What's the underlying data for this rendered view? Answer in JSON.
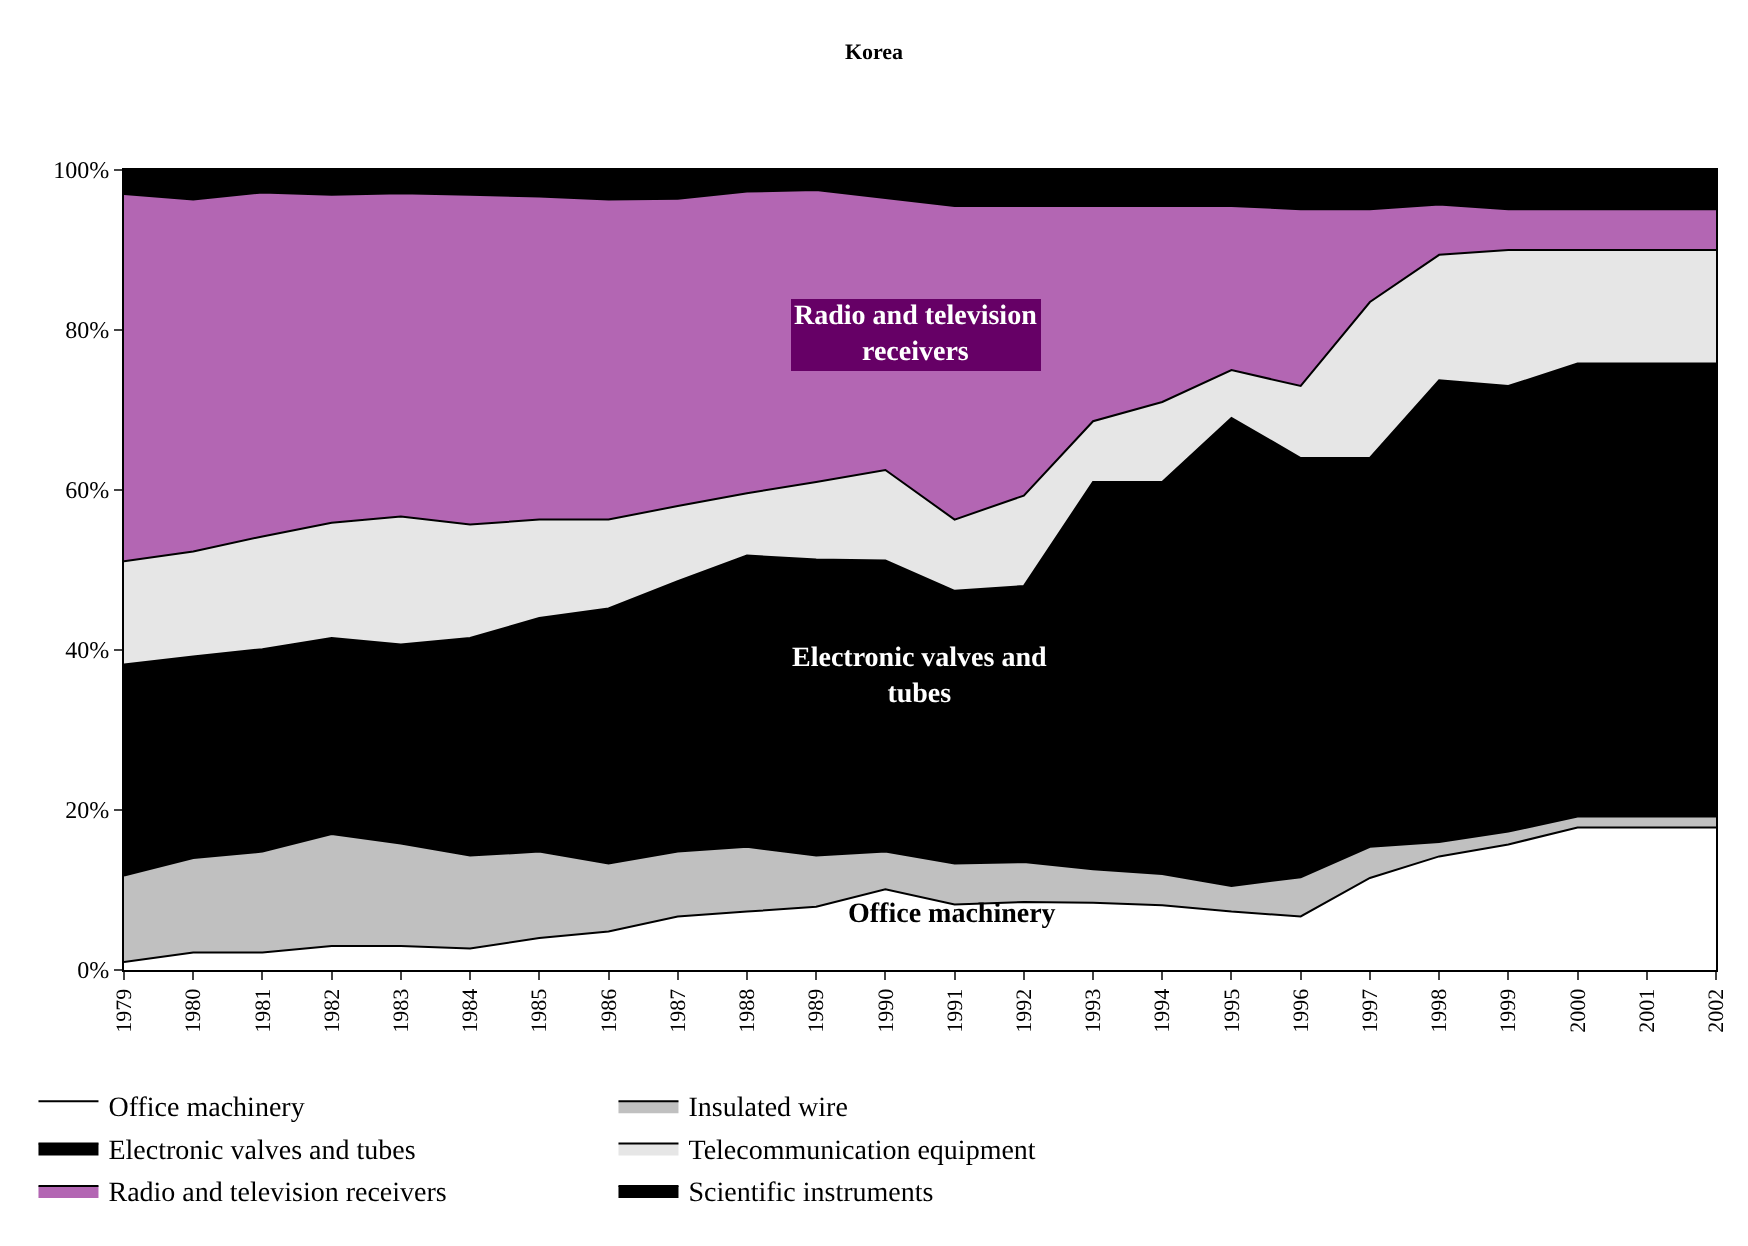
{
  "chart_data": {
    "type": "area",
    "stacked": true,
    "title": "Korea",
    "categories": [
      "1979",
      "1980",
      "1981",
      "1982",
      "1983",
      "1984",
      "1985",
      "1986",
      "1987",
      "1988",
      "1989",
      "1990",
      "1991",
      "1992",
      "1993",
      "1994",
      "1995",
      "1996",
      "1997",
      "1998",
      "1999",
      "2000",
      "2001",
      "2002"
    ],
    "series": [
      {
        "name": "Office machinery",
        "color": "#ffffff",
        "values": [
          1,
          2.2,
          2.2,
          3,
          3,
          2.7,
          4,
          4.8,
          6.7,
          7.3,
          7.9,
          10.1,
          8.2,
          8.5,
          8.4,
          8.1,
          7.3,
          6.7,
          11.5,
          14.2,
          15.7,
          17.8,
          17.8,
          17.8
        ]
      },
      {
        "name": "Insulated wire",
        "color": "#c0c0c0",
        "values": [
          10.8,
          11.8,
          12.6,
          14,
          12.8,
          11.6,
          10.8,
          8.5,
          8.1,
          8.1,
          6.4,
          4.7,
          5.1,
          5,
          4.2,
          3.9,
          3.2,
          4.9,
          3.9,
          1.8,
          1.6,
          1.4,
          1.4,
          1.4
        ]
      },
      {
        "name": "Electronic valves and tubes",
        "color": "#000000",
        "values": [
          26.4,
          25.2,
          25.3,
          24.5,
          24.9,
          27.2,
          29.2,
          31.9,
          33.8,
          36.4,
          37,
          36.4,
          34.1,
          34.5,
          48.4,
          49,
          58.5,
          52.4,
          48.6,
          57.7,
          55.7,
          56.6,
          56.6,
          56.6
        ]
      },
      {
        "name": "Telecommunication equipment",
        "color": "#e6e6e6",
        "values": [
          12.9,
          13.1,
          14.1,
          14.4,
          16,
          14.2,
          12.3,
          11.1,
          9.4,
          7.8,
          9.7,
          11.3,
          8.9,
          11.3,
          7.6,
          10,
          6,
          9,
          19.5,
          15.7,
          17,
          14.2,
          14.2,
          14.2
        ]
      },
      {
        "name": "Radio and television receivers",
        "color": "#b366b3",
        "values": [
          45.9,
          44,
          43,
          41,
          40.4,
          41.2,
          40.4,
          40,
          38.4,
          37.7,
          36.5,
          34,
          39.2,
          36.2,
          26.9,
          24.5,
          20.5,
          22.1,
          11.6,
          6.3,
          5.1,
          5.1,
          5.1,
          5.1
        ]
      },
      {
        "name": "Scientific instruments",
        "color": "#000000",
        "values": [
          3,
          3.7,
          2.8,
          3.1,
          2.9,
          3.1,
          3.3,
          3.7,
          3.6,
          2.7,
          2.5,
          3.5,
          4.5,
          4.5,
          4.5,
          4.5,
          4.5,
          4.9,
          4.9,
          4.3,
          4.9,
          4.9,
          4.9,
          4.9
        ]
      }
    ],
    "ylim": [
      0,
      100
    ],
    "yticks": [
      {
        "value": 0,
        "label": "0%"
      },
      {
        "value": 20,
        "label": "20%"
      },
      {
        "value": 40,
        "label": "40%"
      },
      {
        "value": 60,
        "label": "60%"
      },
      {
        "value": 80,
        "label": "80%"
      },
      {
        "value": 100,
        "label": "100%"
      }
    ],
    "legend": "bottom",
    "annotations": [
      "Radio and television receivers",
      "Electronic valves and tubes",
      "Office machinery"
    ]
  }
}
